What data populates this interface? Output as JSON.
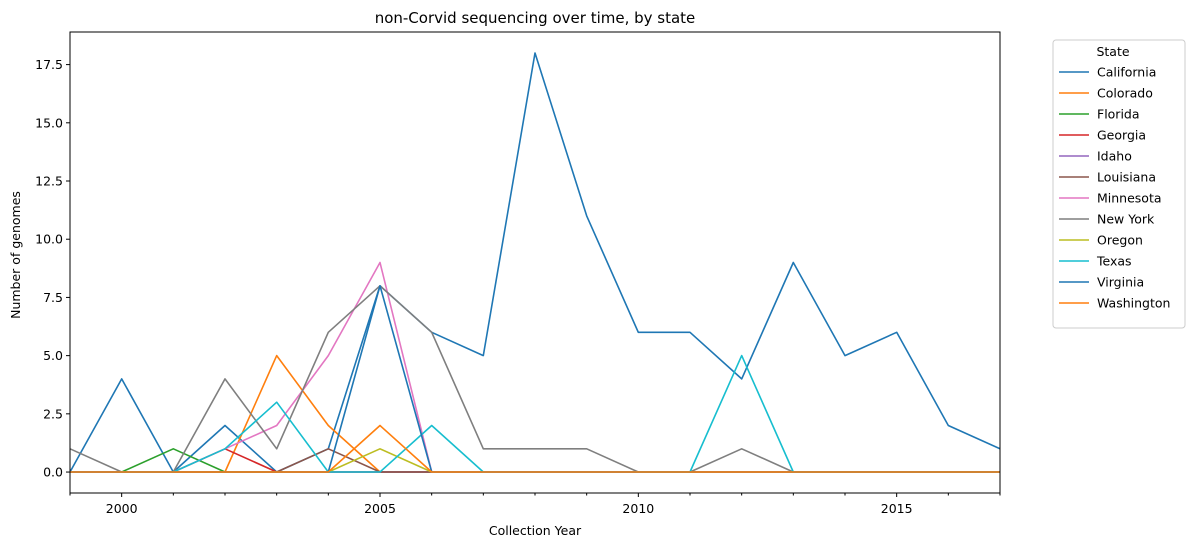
{
  "chart_data": {
    "type": "line",
    "title": "non-Corvid sequencing over time, by state",
    "xlabel": "Collection Year",
    "ylabel": "Number of genomes",
    "xlim": [
      1999,
      2017
    ],
    "ylim": [
      -0.9,
      18.9
    ],
    "x": [
      1999,
      2000,
      2001,
      2002,
      2003,
      2004,
      2005,
      2006,
      2007,
      2008,
      2009,
      2010,
      2011,
      2012,
      2013,
      2014,
      2015,
      2016,
      2017
    ],
    "x_major_ticks": [
      2000,
      2005,
      2010,
      2015
    ],
    "x_major_tick_labels": [
      "2000",
      "2005",
      "2010",
      "2015"
    ],
    "y_ticks": [
      0,
      2.5,
      5,
      7.5,
      10,
      12.5,
      15,
      17.5
    ],
    "y_tick_labels": [
      "0.0",
      "2.5",
      "5.0",
      "7.5",
      "10.0",
      "12.5",
      "15.0",
      "17.5"
    ],
    "grid": false,
    "legend": {
      "title": "State",
      "placement": "outside-right"
    },
    "series": [
      {
        "name": "California",
        "color": "#1f77b4",
        "values": [
          0,
          4,
          0,
          2,
          0,
          1,
          8,
          6,
          5,
          18,
          11,
          6,
          6,
          4,
          9,
          5,
          6,
          2,
          1
        ]
      },
      {
        "name": "Colorado",
        "color": "#ff7f0e",
        "values": [
          0,
          0,
          0,
          0,
          5,
          2,
          0,
          0,
          0,
          0,
          0,
          0,
          0,
          0,
          0,
          0,
          0,
          0,
          0
        ]
      },
      {
        "name": "Florida",
        "color": "#2ca02c",
        "values": [
          0,
          0,
          1,
          0,
          0,
          0,
          0,
          0,
          0,
          0,
          0,
          0,
          0,
          0,
          0,
          0,
          0,
          0,
          0
        ]
      },
      {
        "name": "Georgia",
        "color": "#d62728",
        "values": [
          0,
          0,
          0,
          1,
          0,
          0,
          0,
          0,
          0,
          0,
          0,
          0,
          0,
          0,
          0,
          0,
          0,
          0,
          0
        ]
      },
      {
        "name": "Idaho",
        "color": "#9467bd",
        "values": [
          0,
          0,
          0,
          0,
          0,
          0,
          0,
          0,
          0,
          0,
          0,
          0,
          0,
          0,
          0,
          0,
          0,
          0,
          0
        ]
      },
      {
        "name": "Louisiana",
        "color": "#8c564b",
        "values": [
          0,
          0,
          0,
          0,
          0,
          1,
          0,
          0,
          0,
          0,
          0,
          0,
          0,
          0,
          0,
          0,
          0,
          0,
          0
        ]
      },
      {
        "name": "Minnesota",
        "color": "#e377c2",
        "values": [
          0,
          0,
          0,
          1,
          2,
          5,
          9,
          0,
          0,
          0,
          0,
          0,
          0,
          0,
          0,
          0,
          0,
          0,
          0
        ]
      },
      {
        "name": "New York",
        "color": "#7f7f7f",
        "values": [
          1,
          0,
          0,
          4,
          1,
          6,
          8,
          6,
          1,
          1,
          1,
          0,
          0,
          1,
          0,
          0,
          0,
          0,
          0
        ]
      },
      {
        "name": "Oregon",
        "color": "#bcbd22",
        "values": [
          0,
          0,
          0,
          0,
          0,
          0,
          1,
          0,
          0,
          0,
          0,
          0,
          0,
          0,
          0,
          0,
          0,
          0,
          0
        ]
      },
      {
        "name": "Texas",
        "color": "#17becf",
        "values": [
          0,
          0,
          0,
          1,
          3,
          0,
          0,
          2,
          0,
          0,
          0,
          0,
          0,
          5,
          0,
          0,
          0,
          0,
          0
        ]
      },
      {
        "name": "Virginia",
        "color": "#1f77b4",
        "values": [
          0,
          0,
          0,
          0,
          0,
          0,
          8,
          0,
          0,
          0,
          0,
          0,
          0,
          0,
          0,
          0,
          0,
          0,
          0
        ]
      },
      {
        "name": "Washington",
        "color": "#ff7f0e",
        "values": [
          0,
          0,
          0,
          0,
          0,
          0,
          2,
          0,
          0,
          0,
          0,
          0,
          0,
          0,
          0,
          0,
          0,
          0,
          0
        ]
      }
    ]
  }
}
